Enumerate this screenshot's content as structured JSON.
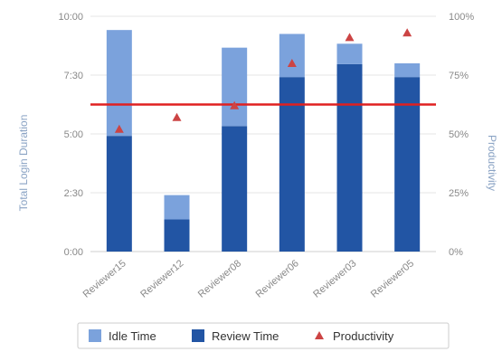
{
  "chart_data": {
    "type": "bar",
    "stacked": true,
    "categories": [
      "Reviewer15",
      "Reviewer12",
      "Reviewer08",
      "Reviewer06",
      "Reviewer03",
      "Reviewer05"
    ],
    "series": [
      {
        "name": "Review Time",
        "kind": "bar",
        "color": "#2255a4",
        "values_minutes": [
          295,
          82,
          320,
          445,
          478,
          445
        ]
      },
      {
        "name": "Idle Time",
        "kind": "bar",
        "color": "#7ba2dc",
        "values_minutes": [
          270,
          62,
          200,
          110,
          52,
          35
        ]
      },
      {
        "name": "Productivity",
        "kind": "scatter",
        "marker": "triangle",
        "color": "#cc4444",
        "axis": "right",
        "values_percent": [
          52,
          57,
          62,
          80,
          91,
          93
        ]
      }
    ],
    "target_line": {
      "axis": "left",
      "value_minutes": 375,
      "color": "#e02020"
    },
    "ylabel": "Total Login Duration",
    "y2label": "Productivity",
    "y_ticks": [
      "0:00",
      "2:30",
      "5:00",
      "7:30",
      "10:00"
    ],
    "y_tick_values_minutes": [
      0,
      150,
      300,
      450,
      600
    ],
    "y2_ticks": [
      "0%",
      "25%",
      "50%",
      "75%",
      "100%"
    ],
    "y2_tick_values_percent": [
      0,
      25,
      50,
      75,
      100
    ],
    "ylim_minutes": [
      0,
      600
    ],
    "y2lim_percent": [
      0,
      100
    ],
    "grid": true,
    "legend_position": "bottom",
    "legend": [
      {
        "label": "Idle Time",
        "symbol": "square",
        "color": "#7ba2dc"
      },
      {
        "label": "Review Time",
        "symbol": "square",
        "color": "#2255a4"
      },
      {
        "label": "Productivity",
        "symbol": "triangle",
        "color": "#cc4444"
      }
    ]
  }
}
